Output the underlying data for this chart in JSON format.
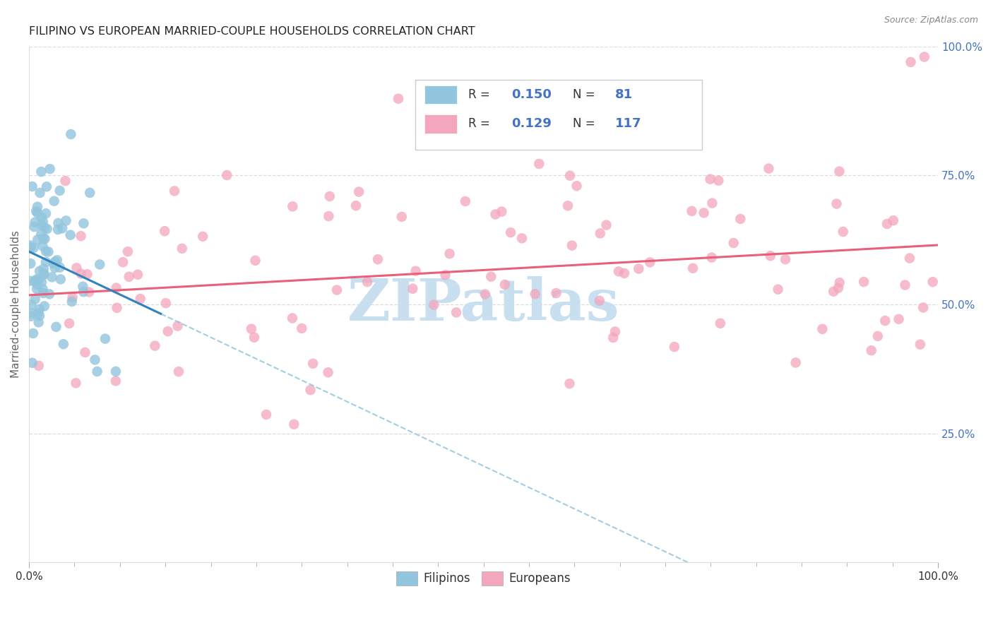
{
  "title": "FILIPINO VS EUROPEAN MARRIED-COUPLE HOUSEHOLDS CORRELATION CHART",
  "source": "Source: ZipAtlas.com",
  "ylabel": "Married-couple Households",
  "blue_color": "#92c5de",
  "pink_color": "#f4a6bc",
  "blue_line_color": "#3182bd",
  "pink_line_color": "#e8607a",
  "blue_dash_color": "#92c5de",
  "watermark_text": "ZIPatlas",
  "watermark_color": "#c8dff0",
  "legend_text_color": "#333333",
  "legend_val_color": "#4472c4",
  "right_tick_color": "#4472c4",
  "grid_color": "#dddddd",
  "spine_color": "#dddddd",
  "xlabel_color": "#333333",
  "title_color": "#222222",
  "source_color": "#888888"
}
